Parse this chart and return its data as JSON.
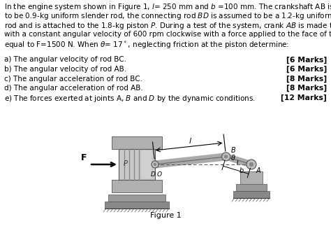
{
  "bg_color": "#ffffff",
  "text_color": "#000000",
  "fontsize_body": 7.5,
  "fontsize_marks": 7.5,
  "figure_label": "Figure 1",
  "title_lines": [
    "In the engine system shown in Figure 1, $l$= 250 mm and $b$ =100 mm. The crankshaft AB is assumed",
    "to be 0.9-kg uniform slender rod, the connecting rod $BD$ is assumed to be a 1.2-kg uniform slender",
    "rod and is attached to the 1.8-kg piston $P$. During a test of the system, crank $AB$ is made to rotate",
    "with a constant angular velocity of 600 rpm clockwise with a force applied to the face of the piston",
    "equal to F=1500 N. When $\\theta$= 17$^\\circ$, neglecting friction at the piston determine:"
  ],
  "questions": [
    [
      "a) The angular velocity of rod BC.",
      "[6 Marks]"
    ],
    [
      "b) The angular velocity of rod AB.",
      "[6 Marks]"
    ],
    [
      "c) The angular acceleration of rod BC.",
      "[8 Marks]"
    ],
    [
      "d) The angular acceleration of rod AB.",
      "[8 Marks]"
    ],
    [
      "e) The forces exerted at joints A, $B$ and $D$ by the dynamic conditions.",
      "[12 Marks]"
    ]
  ]
}
